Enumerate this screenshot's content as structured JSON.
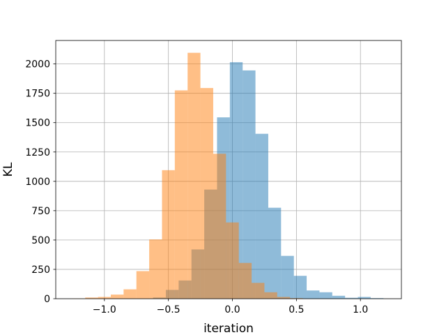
{
  "chart_data": {
    "type": "histogram",
    "title": "",
    "xlabel": "iteration",
    "ylabel": "KL",
    "xlim": [
      -1.38,
      1.32
    ],
    "ylim": [
      0,
      2200
    ],
    "grid": true,
    "legend": "none",
    "xticks": [
      -1.0,
      -0.5,
      0.0,
      0.5,
      1.0
    ],
    "xtick_labels": [
      "−1.0",
      "−0.5",
      "0.0",
      "0.5",
      "1.0"
    ],
    "yticks": [
      0,
      250,
      500,
      750,
      1000,
      1250,
      1500,
      1750,
      2000
    ],
    "ytick_labels": [
      "0",
      "250",
      "500",
      "750",
      "1000",
      "1250",
      "1500",
      "1750",
      "2000"
    ],
    "series": [
      {
        "color": "#1f77b4",
        "alpha": 0.5,
        "bins": [
          [
            -0.62,
            -0.52,
            10
          ],
          [
            -0.52,
            -0.42,
            75
          ],
          [
            -0.42,
            -0.32,
            155
          ],
          [
            -0.32,
            -0.22,
            420
          ],
          [
            -0.22,
            -0.12,
            930
          ],
          [
            -0.12,
            -0.02,
            1545
          ],
          [
            -0.02,
            0.08,
            2015
          ],
          [
            0.08,
            0.18,
            1945
          ],
          [
            0.18,
            0.28,
            1405
          ],
          [
            0.28,
            0.38,
            775
          ],
          [
            0.38,
            0.48,
            365
          ],
          [
            0.48,
            0.58,
            195
          ],
          [
            0.58,
            0.68,
            70
          ],
          [
            0.68,
            0.78,
            55
          ],
          [
            0.78,
            0.88,
            25
          ],
          [
            0.88,
            0.98,
            8
          ],
          [
            0.98,
            1.08,
            15
          ],
          [
            1.08,
            1.18,
            5
          ]
        ]
      },
      {
        "color": "#ff7f0e",
        "alpha": 0.5,
        "bins": [
          [
            -1.25,
            -1.15,
            2
          ],
          [
            -1.15,
            -1.05,
            10
          ],
          [
            -1.05,
            -0.95,
            15
          ],
          [
            -0.95,
            -0.85,
            35
          ],
          [
            -0.85,
            -0.75,
            80
          ],
          [
            -0.75,
            -0.65,
            235
          ],
          [
            -0.65,
            -0.55,
            505
          ],
          [
            -0.55,
            -0.45,
            1095
          ],
          [
            -0.45,
            -0.35,
            1775
          ],
          [
            -0.35,
            -0.25,
            2095
          ],
          [
            -0.25,
            -0.15,
            1795
          ],
          [
            -0.15,
            -0.05,
            1235
          ],
          [
            -0.05,
            0.05,
            650
          ],
          [
            0.05,
            0.15,
            305
          ],
          [
            0.15,
            0.25,
            135
          ],
          [
            0.25,
            0.35,
            55
          ],
          [
            0.35,
            0.45,
            15
          ],
          [
            0.45,
            0.55,
            5
          ]
        ]
      }
    ]
  }
}
